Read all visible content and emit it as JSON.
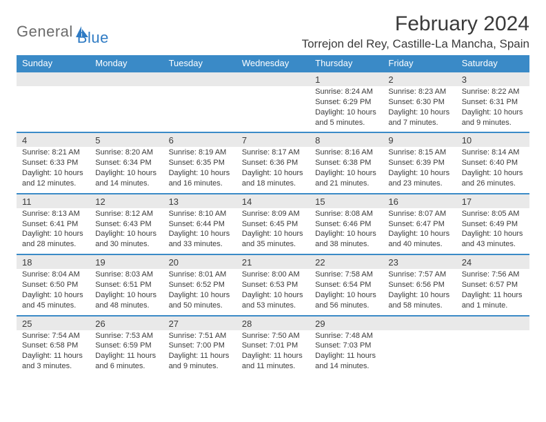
{
  "logo": {
    "general": "General",
    "blue": "Blue"
  },
  "header": {
    "title": "February 2024",
    "location": "Torrejon del Rey, Castille-La Mancha, Spain"
  },
  "weekdays": [
    "Sunday",
    "Monday",
    "Tuesday",
    "Wednesday",
    "Thursday",
    "Friday",
    "Saturday"
  ],
  "colors": {
    "header_bg": "#3a8ac7",
    "dayrow_bg": "#e9e9e9",
    "dayrow_border": "#3a8ac7",
    "text": "#3a3a3a",
    "logo_gray": "#6b6b6b",
    "logo_blue": "#2f7bc4",
    "background": "#ffffff"
  },
  "first_weekday_index": 4,
  "days": [
    {
      "n": "1",
      "sunrise": "Sunrise: 8:24 AM",
      "sunset": "Sunset: 6:29 PM",
      "daylight": "Daylight: 10 hours and 5 minutes."
    },
    {
      "n": "2",
      "sunrise": "Sunrise: 8:23 AM",
      "sunset": "Sunset: 6:30 PM",
      "daylight": "Daylight: 10 hours and 7 minutes."
    },
    {
      "n": "3",
      "sunrise": "Sunrise: 8:22 AM",
      "sunset": "Sunset: 6:31 PM",
      "daylight": "Daylight: 10 hours and 9 minutes."
    },
    {
      "n": "4",
      "sunrise": "Sunrise: 8:21 AM",
      "sunset": "Sunset: 6:33 PM",
      "daylight": "Daylight: 10 hours and 12 minutes."
    },
    {
      "n": "5",
      "sunrise": "Sunrise: 8:20 AM",
      "sunset": "Sunset: 6:34 PM",
      "daylight": "Daylight: 10 hours and 14 minutes."
    },
    {
      "n": "6",
      "sunrise": "Sunrise: 8:19 AM",
      "sunset": "Sunset: 6:35 PM",
      "daylight": "Daylight: 10 hours and 16 minutes."
    },
    {
      "n": "7",
      "sunrise": "Sunrise: 8:17 AM",
      "sunset": "Sunset: 6:36 PM",
      "daylight": "Daylight: 10 hours and 18 minutes."
    },
    {
      "n": "8",
      "sunrise": "Sunrise: 8:16 AM",
      "sunset": "Sunset: 6:38 PM",
      "daylight": "Daylight: 10 hours and 21 minutes."
    },
    {
      "n": "9",
      "sunrise": "Sunrise: 8:15 AM",
      "sunset": "Sunset: 6:39 PM",
      "daylight": "Daylight: 10 hours and 23 minutes."
    },
    {
      "n": "10",
      "sunrise": "Sunrise: 8:14 AM",
      "sunset": "Sunset: 6:40 PM",
      "daylight": "Daylight: 10 hours and 26 minutes."
    },
    {
      "n": "11",
      "sunrise": "Sunrise: 8:13 AM",
      "sunset": "Sunset: 6:41 PM",
      "daylight": "Daylight: 10 hours and 28 minutes."
    },
    {
      "n": "12",
      "sunrise": "Sunrise: 8:12 AM",
      "sunset": "Sunset: 6:43 PM",
      "daylight": "Daylight: 10 hours and 30 minutes."
    },
    {
      "n": "13",
      "sunrise": "Sunrise: 8:10 AM",
      "sunset": "Sunset: 6:44 PM",
      "daylight": "Daylight: 10 hours and 33 minutes."
    },
    {
      "n": "14",
      "sunrise": "Sunrise: 8:09 AM",
      "sunset": "Sunset: 6:45 PM",
      "daylight": "Daylight: 10 hours and 35 minutes."
    },
    {
      "n": "15",
      "sunrise": "Sunrise: 8:08 AM",
      "sunset": "Sunset: 6:46 PM",
      "daylight": "Daylight: 10 hours and 38 minutes."
    },
    {
      "n": "16",
      "sunrise": "Sunrise: 8:07 AM",
      "sunset": "Sunset: 6:47 PM",
      "daylight": "Daylight: 10 hours and 40 minutes."
    },
    {
      "n": "17",
      "sunrise": "Sunrise: 8:05 AM",
      "sunset": "Sunset: 6:49 PM",
      "daylight": "Daylight: 10 hours and 43 minutes."
    },
    {
      "n": "18",
      "sunrise": "Sunrise: 8:04 AM",
      "sunset": "Sunset: 6:50 PM",
      "daylight": "Daylight: 10 hours and 45 minutes."
    },
    {
      "n": "19",
      "sunrise": "Sunrise: 8:03 AM",
      "sunset": "Sunset: 6:51 PM",
      "daylight": "Daylight: 10 hours and 48 minutes."
    },
    {
      "n": "20",
      "sunrise": "Sunrise: 8:01 AM",
      "sunset": "Sunset: 6:52 PM",
      "daylight": "Daylight: 10 hours and 50 minutes."
    },
    {
      "n": "21",
      "sunrise": "Sunrise: 8:00 AM",
      "sunset": "Sunset: 6:53 PM",
      "daylight": "Daylight: 10 hours and 53 minutes."
    },
    {
      "n": "22",
      "sunrise": "Sunrise: 7:58 AM",
      "sunset": "Sunset: 6:54 PM",
      "daylight": "Daylight: 10 hours and 56 minutes."
    },
    {
      "n": "23",
      "sunrise": "Sunrise: 7:57 AM",
      "sunset": "Sunset: 6:56 PM",
      "daylight": "Daylight: 10 hours and 58 minutes."
    },
    {
      "n": "24",
      "sunrise": "Sunrise: 7:56 AM",
      "sunset": "Sunset: 6:57 PM",
      "daylight": "Daylight: 11 hours and 1 minute."
    },
    {
      "n": "25",
      "sunrise": "Sunrise: 7:54 AM",
      "sunset": "Sunset: 6:58 PM",
      "daylight": "Daylight: 11 hours and 3 minutes."
    },
    {
      "n": "26",
      "sunrise": "Sunrise: 7:53 AM",
      "sunset": "Sunset: 6:59 PM",
      "daylight": "Daylight: 11 hours and 6 minutes."
    },
    {
      "n": "27",
      "sunrise": "Sunrise: 7:51 AM",
      "sunset": "Sunset: 7:00 PM",
      "daylight": "Daylight: 11 hours and 9 minutes."
    },
    {
      "n": "28",
      "sunrise": "Sunrise: 7:50 AM",
      "sunset": "Sunset: 7:01 PM",
      "daylight": "Daylight: 11 hours and 11 minutes."
    },
    {
      "n": "29",
      "sunrise": "Sunrise: 7:48 AM",
      "sunset": "Sunset: 7:03 PM",
      "daylight": "Daylight: 11 hours and 14 minutes."
    }
  ]
}
